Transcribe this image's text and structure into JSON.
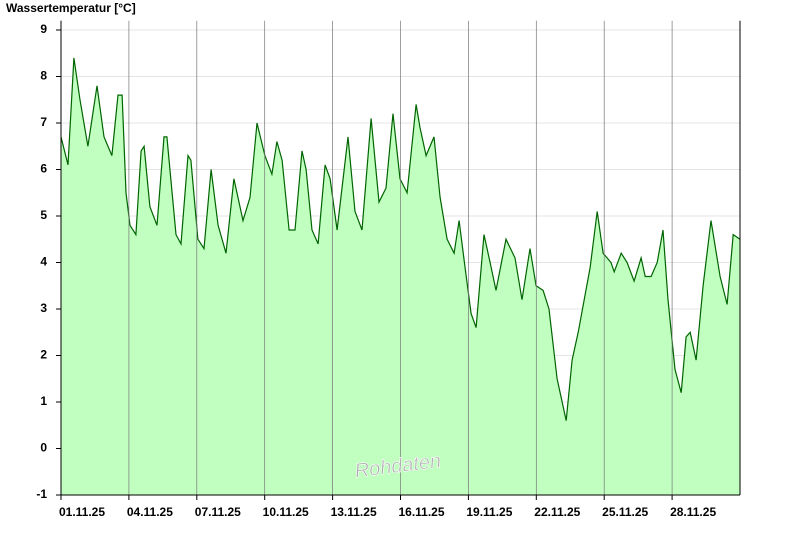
{
  "chart_data": {
    "type": "area",
    "y_label": "Wassertemperatur [°C]",
    "annotation": "Rohdaten",
    "x": [
      0,
      0.31,
      0.57,
      0.84,
      1.19,
      1.59,
      1.9,
      2.25,
      2.52,
      2.7,
      2.87,
      3.05,
      3.31,
      3.54,
      3.67,
      3.93,
      4.24,
      4.55,
      4.68,
      5.08,
      5.3,
      5.61,
      5.74,
      6.05,
      6.32,
      6.63,
      6.94,
      7.29,
      7.64,
      8.04,
      8.35,
      8.66,
      9.01,
      9.32,
      9.54,
      9.77,
      10.08,
      10.34,
      10.65,
      10.83,
      11.09,
      11.36,
      11.67,
      11.89,
      12.2,
      12.68,
      12.99,
      13.3,
      13.7,
      14.05,
      14.36,
      14.67,
      14.98,
      15.29,
      15.69,
      15.86,
      16.13,
      16.48,
      16.75,
      17.06,
      17.37,
      17.59,
      17.85,
      18.12,
      18.34,
      18.69,
      18.96,
      19.22,
      19.66,
      20.06,
      20.37,
      20.72,
      20.99,
      21.3,
      21.56,
      21.92,
      22.32,
      22.58,
      22.85,
      23.38,
      23.69,
      23.95,
      24.3,
      24.44,
      24.75,
      25.01,
      25.32,
      25.63,
      25.81,
      26.07,
      26.34,
      26.6,
      26.82,
      27.13,
      27.4,
      27.62,
      27.8,
      28.06,
      28.37,
      28.72,
      29.12,
      29.43,
      29.7,
      30
    ],
    "values": [
      6.7,
      6.1,
      8.4,
      7.5,
      6.5,
      7.8,
      6.7,
      6.3,
      7.6,
      7.6,
      5.5,
      4.8,
      4.6,
      6.4,
      6.5,
      5.2,
      4.8,
      6.7,
      6.7,
      4.6,
      4.4,
      6.3,
      6.2,
      4.5,
      4.3,
      6.0,
      4.8,
      4.2,
      5.8,
      4.9,
      5.4,
      7.0,
      6.3,
      5.9,
      6.6,
      6.2,
      4.7,
      4.7,
      6.4,
      6.0,
      4.7,
      4.4,
      6.1,
      5.8,
      4.7,
      6.7,
      5.1,
      4.7,
      7.1,
      5.3,
      5.6,
      7.2,
      5.8,
      5.5,
      7.4,
      6.9,
      6.3,
      6.7,
      5.4,
      4.5,
      4.2,
      4.9,
      3.9,
      2.9,
      2.6,
      4.6,
      4.0,
      3.4,
      4.5,
      4.1,
      3.2,
      4.3,
      3.5,
      3.4,
      3.0,
      1.5,
      0.6,
      1.9,
      2.5,
      3.9,
      5.1,
      4.2,
      4.0,
      3.8,
      4.2,
      4.0,
      3.6,
      4.1,
      3.7,
      3.7,
      4.0,
      4.7,
      3.2,
      1.7,
      1.2,
      2.4,
      2.5,
      1.9,
      3.5,
      4.9,
      3.7,
      3.1,
      4.6,
      4.5
    ],
    "color": "#006400",
    "fill": "#c0ffc0",
    "xlim": [
      0,
      30
    ],
    "xticks": [
      {
        "value": 0,
        "label": "01.11.25"
      },
      {
        "value": 3,
        "label": "04.11.25"
      },
      {
        "value": 6,
        "label": "07.11.25"
      },
      {
        "value": 9,
        "label": "10.11.25"
      },
      {
        "value": 12,
        "label": "13.11.25"
      },
      {
        "value": 15,
        "label": "16.11.25"
      },
      {
        "value": 18,
        "label": "19.11.25"
      },
      {
        "value": 21,
        "label": "22.11.25"
      },
      {
        "value": 24,
        "label": "25.11.25"
      },
      {
        "value": 27,
        "label": "28.11.25"
      }
    ],
    "ylim": [
      -1,
      9.2
    ],
    "yticks": [
      -1,
      0,
      1,
      2,
      3,
      4,
      5,
      6,
      7,
      8,
      9
    ],
    "grid": true
  }
}
